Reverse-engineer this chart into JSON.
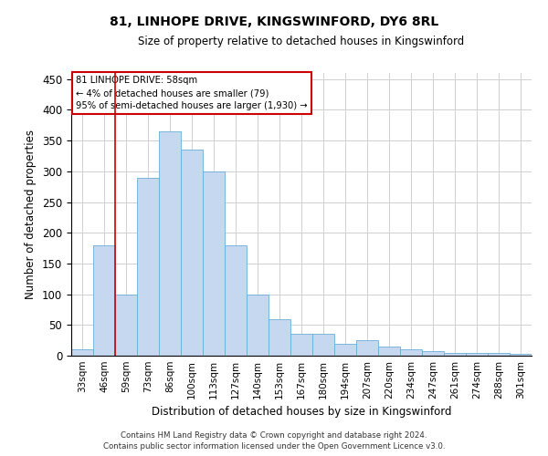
{
  "title": "81, LINHOPE DRIVE, KINGSWINFORD, DY6 8RL",
  "subtitle": "Size of property relative to detached houses in Kingswinford",
  "xlabel": "Distribution of detached houses by size in Kingswinford",
  "ylabel": "Number of detached properties",
  "categories": [
    "33sqm",
    "46sqm",
    "59sqm",
    "73sqm",
    "86sqm",
    "100sqm",
    "113sqm",
    "127sqm",
    "140sqm",
    "153sqm",
    "167sqm",
    "180sqm",
    "194sqm",
    "207sqm",
    "220sqm",
    "234sqm",
    "247sqm",
    "261sqm",
    "274sqm",
    "288sqm",
    "301sqm"
  ],
  "values": [
    10,
    180,
    100,
    290,
    365,
    335,
    300,
    180,
    100,
    60,
    35,
    35,
    20,
    25,
    15,
    10,
    8,
    5,
    5,
    5,
    3
  ],
  "bar_color": "#c5d8f0",
  "bar_edge_color": "#6aaed6",
  "annotation_text_lines": [
    "81 LINHOPE DRIVE: 58sqm",
    "← 4% of detached houses are smaller (79)",
    "95% of semi-detached houses are larger (1,930) →"
  ],
  "annotation_box_color": "#ffffff",
  "annotation_box_edge": "#cc0000",
  "vline_color": "#cc0000",
  "vline_x": 1.5,
  "ylim": [
    0,
    460
  ],
  "yticks": [
    0,
    50,
    100,
    150,
    200,
    250,
    300,
    350,
    400,
    450
  ],
  "footer_line1": "Contains HM Land Registry data © Crown copyright and database right 2024.",
  "footer_line2": "Contains public sector information licensed under the Open Government Licence v3.0.",
  "background_color": "#ffffff",
  "grid_color": "#d0d0d0"
}
